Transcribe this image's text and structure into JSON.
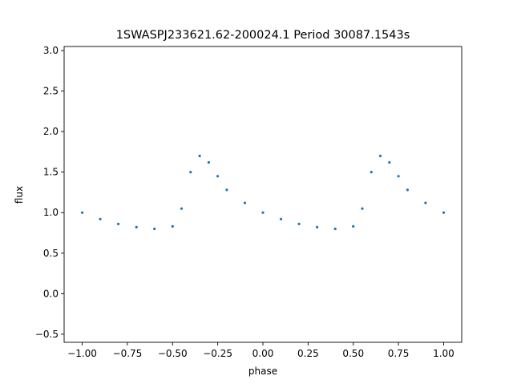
{
  "chart_data": {
    "type": "scatter",
    "title": "1SWASPJ233621.62-200024.1 Period 30087.1543s",
    "xlabel": "phase",
    "ylabel": "flux",
    "xlim": [
      -1.1,
      1.1
    ],
    "ylim": [
      -0.6,
      3.05
    ],
    "xticks": [
      -1.0,
      -0.75,
      -0.5,
      -0.25,
      0.0,
      0.25,
      0.5,
      0.75,
      1.0
    ],
    "xtick_labels": [
      "−1.00",
      "−0.75",
      "−0.50",
      "−0.25",
      "0.00",
      "0.25",
      "0.50",
      "0.75",
      "1.00"
    ],
    "yticks": [
      -0.5,
      0.0,
      0.5,
      1.0,
      1.5,
      2.0,
      2.5,
      3.0
    ],
    "ytick_labels": [
      "−0.5",
      "0.0",
      "0.5",
      "1.0",
      "1.5",
      "2.0",
      "2.5",
      "3.0"
    ],
    "grid": false,
    "legend": "none",
    "marker_color": "#1f77b4",
    "series": [
      {
        "x": [
          -1.0,
          -0.9,
          -0.8,
          -0.7,
          -0.6,
          -0.5,
          -0.45,
          -0.4,
          -0.35,
          -0.3,
          -0.25,
          -0.2,
          -0.1,
          0.0,
          0.1,
          0.2,
          0.3,
          0.4,
          0.5,
          0.55,
          0.6,
          0.65,
          0.7,
          0.75,
          0.8,
          0.9,
          1.0
        ],
        "y": [
          1.0,
          0.92,
          0.86,
          0.82,
          0.8,
          0.83,
          1.05,
          1.5,
          1.7,
          1.62,
          1.45,
          1.28,
          1.12,
          1.0,
          0.92,
          0.86,
          0.82,
          0.8,
          0.83,
          1.05,
          1.5,
          1.7,
          1.62,
          1.45,
          1.28,
          1.12,
          1.0
        ]
      }
    ]
  }
}
